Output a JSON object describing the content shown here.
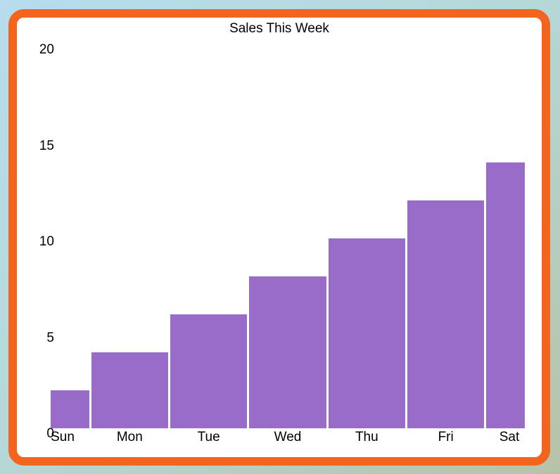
{
  "colors": {
    "bar": "#9a6cca",
    "bar_gap": "#ffffff",
    "card_border": "#f3641f",
    "card_background": "#ffffff",
    "page_gradient_top_left": "#b7ddee",
    "page_gradient_middle": "#b5d9da",
    "page_gradient_bottom_right": "#b7c2a8",
    "text": "#000000"
  },
  "chart_data": {
    "type": "bar",
    "title": "Sales This Week",
    "categories": [
      "Sun",
      "Mon",
      "Tue",
      "Wed",
      "Thu",
      "Fri",
      "Sat"
    ],
    "values": [
      2,
      4,
      6,
      8,
      10,
      12,
      14
    ],
    "xlabel": "",
    "ylabel": "",
    "ylim": [
      0,
      20
    ],
    "yticks": [
      0,
      5,
      10,
      15,
      20
    ],
    "grid": false,
    "legend": false,
    "bar_color_note": "single series, solid purple bars, thin white separators, first and last bars half-width (clipped at plot edges)"
  }
}
